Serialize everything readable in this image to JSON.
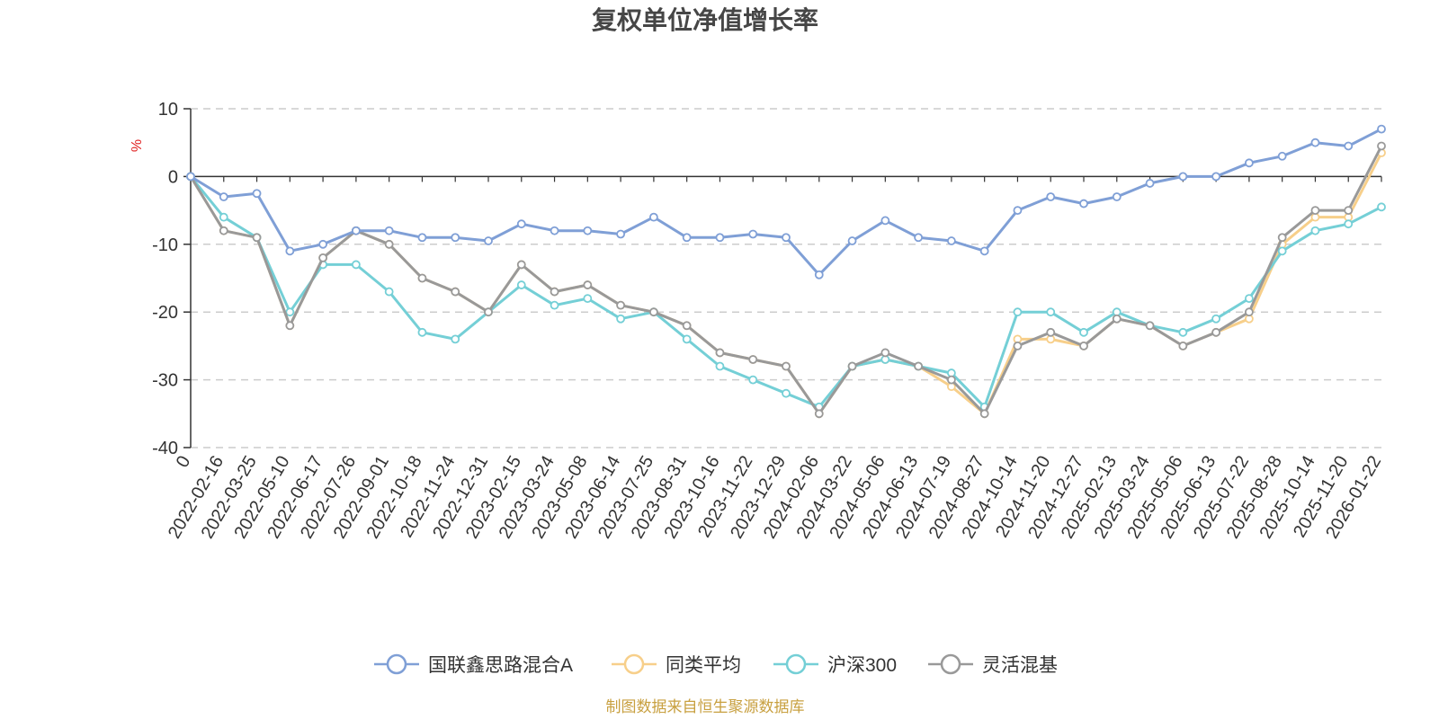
{
  "chart_data": {
    "type": "line",
    "title": "复权单位净值增长率",
    "ylabel": "%",
    "ylim": [
      -40,
      10
    ],
    "yticks": [
      10,
      0,
      -10,
      -20,
      -30,
      -40
    ],
    "xlabel": "",
    "categories": [
      "0",
      "2022-02-16",
      "2022-03-25",
      "2022-05-10",
      "2022-06-17",
      "2022-07-26",
      "2022-09-01",
      "2022-10-18",
      "2022-11-24",
      "2022-12-31",
      "2023-02-15",
      "2023-03-24",
      "2023-05-08",
      "2023-06-14",
      "2023-07-25",
      "2023-08-31",
      "2023-10-16",
      "2023-11-22",
      "2023-12-29",
      "2024-02-06",
      "2024-03-22",
      "2024-05-06",
      "2024-06-13",
      "2024-07-19",
      "2024-08-27",
      "2024-10-14",
      "2024-11-20",
      "2024-12-27",
      "2025-02-13",
      "2025-03-24",
      "2025-05-06",
      "2025-06-13",
      "2025-07-22",
      "2025-08-28",
      "2025-10-14",
      "2025-11-20",
      "2026-01-22"
    ],
    "grid": true,
    "legend_position": "bottom-center",
    "series": [
      {
        "name": "国联鑫思路混合A",
        "color": "#7f9fd6",
        "values": [
          0,
          -3,
          -2.5,
          -11,
          -10,
          -8,
          -8,
          -9,
          -9,
          -9.5,
          -7,
          -8,
          -8,
          -8.5,
          -6,
          -9,
          -9,
          -8.5,
          -9,
          -14.5,
          -9.5,
          -6.5,
          -9,
          -9.5,
          -11,
          -5,
          -3,
          -4,
          -3,
          -1,
          0,
          0,
          2,
          3,
          5,
          4.5,
          7
        ]
      },
      {
        "name": "同类平均",
        "color": "#f7cf8a",
        "values": [
          0,
          -8,
          -9,
          -22,
          -12,
          -8,
          -10,
          -15,
          -17,
          -20,
          -13,
          -17,
          -16,
          -19,
          -20,
          -22,
          -26,
          -27,
          -28,
          -35,
          -28,
          -27,
          -28,
          -31,
          -35,
          -24,
          -24,
          -25,
          -21,
          -22,
          -25,
          -23,
          -21,
          -10,
          -6,
          -6,
          3.5
        ]
      },
      {
        "name": "沪深300",
        "color": "#74cfd6",
        "values": [
          0,
          -6,
          -9,
          -20,
          -13,
          -13,
          -17,
          -23,
          -24,
          -20,
          -16,
          -19,
          -18,
          -21,
          -20,
          -24,
          -28,
          -30,
          -32,
          -34,
          -28,
          -27,
          -28,
          -29,
          -34,
          -20,
          -20,
          -23,
          -20,
          -22,
          -23,
          -21,
          -18,
          -11,
          -8,
          -7,
          -4.5
        ]
      },
      {
        "name": "灵活混基",
        "color": "#999999",
        "values": [
          0,
          -8,
          -9,
          -22,
          -12,
          -8,
          -10,
          -15,
          -17,
          -20,
          -13,
          -17,
          -16,
          -19,
          -20,
          -22,
          -26,
          -27,
          -28,
          -35,
          -28,
          -26,
          -28,
          -30,
          -35,
          -25,
          -23,
          -25,
          -21,
          -22,
          -25,
          -23,
          -20,
          -9,
          -5,
          -5,
          4.5
        ]
      }
    ]
  },
  "legend": {
    "items": [
      "国联鑫思路混合A",
      "同类平均",
      "沪深300",
      "灵活混基"
    ]
  },
  "source": "制图数据来自恒生聚源数据库"
}
